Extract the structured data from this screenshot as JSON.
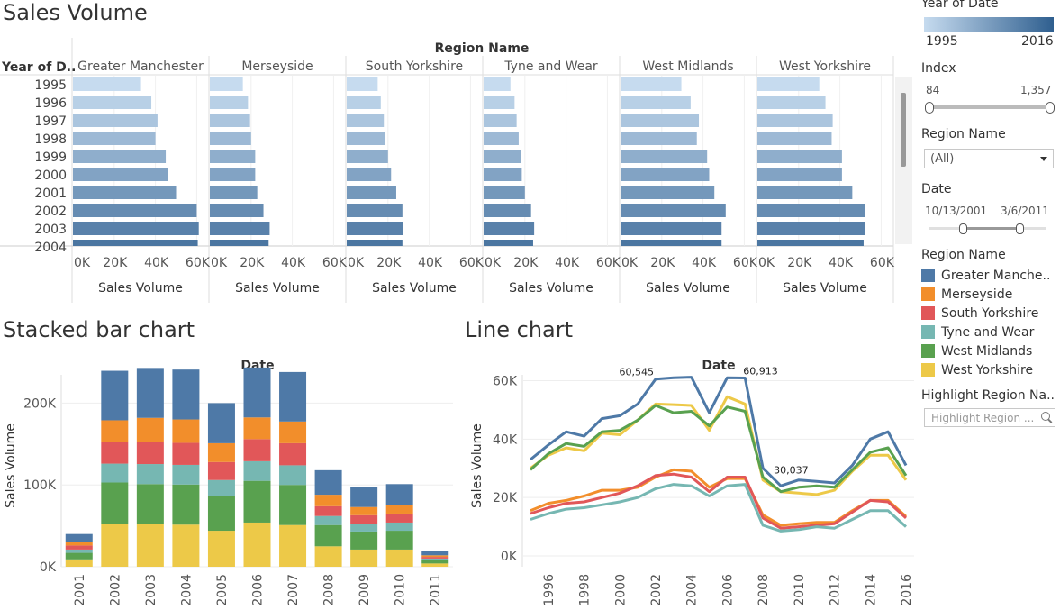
{
  "dashboard": {
    "titles": {
      "top": "Sales Volume",
      "stacked": "Stacked bar chart",
      "line": "Line chart"
    }
  },
  "sidebar": {
    "year_filter": {
      "title": "Year of Date",
      "min_label": "1995",
      "max_label": "2016",
      "color_from": "#c6dbef",
      "color_to": "#2f5f8f"
    },
    "index_filter": {
      "title": "Index",
      "min_label": "84",
      "max_label": "1,357"
    },
    "region_filter": {
      "title": "Region Name",
      "value": "(All)"
    },
    "date_filter": {
      "title": "Date",
      "min_label": "10/13/2001",
      "max_label": "3/6/2011"
    },
    "legend": {
      "title": "Region Name",
      "items": [
        {
          "label": "Greater Manche..",
          "color": "#4e79a7"
        },
        {
          "label": "Merseyside",
          "color": "#f28e2b"
        },
        {
          "label": "South Yorkshire",
          "color": "#e15759"
        },
        {
          "label": "Tyne and Wear",
          "color": "#76b7b2"
        },
        {
          "label": "West Midlands",
          "color": "#59a14f"
        },
        {
          "label": "West Yorkshire",
          "color": "#edc948"
        }
      ]
    },
    "highlight": {
      "title": "Highlight Region Na..",
      "placeholder": "Highlight Region ..."
    }
  },
  "chart_data": [
    {
      "type": "bar",
      "orientation": "horizontal",
      "header": "Region Name",
      "row_header": "Year of D..",
      "xlabel": "Sales Volume",
      "xticks": [
        "0K",
        "20K",
        "40K",
        "60K"
      ],
      "xlim": [
        0,
        62000
      ],
      "categories": [
        "1995",
        "1996",
        "1997",
        "1998",
        "1999",
        "2000",
        "2001",
        "2002",
        "2003",
        "2004"
      ],
      "panels": [
        {
          "name": "Greater Manchester",
          "values": [
            33000,
            38000,
            41000,
            40000,
            45000,
            46000,
            50000,
            60000,
            61000,
            60500
          ]
        },
        {
          "name": "Merseyside",
          "values": [
            16000,
            18500,
            19500,
            20000,
            22000,
            22000,
            23000,
            26000,
            29000,
            28500
          ]
        },
        {
          "name": "South Yorkshire",
          "values": [
            15000,
            16500,
            18000,
            18500,
            20000,
            21500,
            24000,
            27000,
            27500,
            27000
          ]
        },
        {
          "name": "Tyne and Wear",
          "values": [
            13000,
            15000,
            16000,
            17000,
            18000,
            18500,
            20000,
            23000,
            24500,
            24000
          ]
        },
        {
          "name": "West Midlands",
          "values": [
            29500,
            34000,
            38000,
            37000,
            42000,
            43000,
            45500,
            51000,
            49000,
            49000
          ]
        },
        {
          "name": "West Yorkshire",
          "values": [
            30000,
            33000,
            36500,
            36000,
            41000,
            41000,
            46000,
            52000,
            52000,
            51500
          ]
        }
      ]
    },
    {
      "type": "bar",
      "stacked": true,
      "xlabel": "Date",
      "ylabel": "Sales Volume",
      "ylim": [
        0,
        250000
      ],
      "yticks": [
        "0K",
        "100K",
        "200K"
      ],
      "categories": [
        "2001",
        "2002",
        "2003",
        "2004",
        "2005",
        "2006",
        "2007",
        "2008",
        "2009",
        "2010",
        "2011"
      ],
      "series": [
        {
          "name": "West Yorkshire",
          "values": [
            9000,
            52000,
            52000,
            51500,
            44000,
            54000,
            51000,
            25000,
            21000,
            21000,
            4000
          ]
        },
        {
          "name": "West Midlands",
          "values": [
            8000,
            51000,
            49000,
            49000,
            42000,
            51000,
            49000,
            26000,
            22000,
            23000,
            4000
          ]
        },
        {
          "name": "Tyne and Wear",
          "values": [
            4000,
            23000,
            24500,
            24000,
            20000,
            24000,
            24000,
            11000,
            9000,
            10000,
            2000
          ]
        },
        {
          "name": "South Yorkshire",
          "values": [
            5000,
            27000,
            27500,
            27000,
            22000,
            27000,
            27000,
            12000,
            11000,
            11000,
            2000
          ]
        },
        {
          "name": "Merseyside",
          "values": [
            4000,
            26000,
            29000,
            28500,
            23000,
            26500,
            26500,
            14000,
            10000,
            10000,
            2000
          ]
        },
        {
          "name": "Greater Manchester",
          "values": [
            10000,
            60500,
            61000,
            61000,
            49000,
            61000,
            60500,
            30000,
            24000,
            26000,
            5000
          ]
        }
      ]
    },
    {
      "type": "line",
      "xlabel": "Date",
      "ylabel": "Sales Volume",
      "ylim": [
        0,
        62000
      ],
      "yticks": [
        "0K",
        "20K",
        "40K",
        "60K"
      ],
      "xticks": [
        "1996",
        "1998",
        "2000",
        "2002",
        "2004",
        "2006",
        "2008",
        "2010",
        "2012",
        "2014",
        "2016"
      ],
      "x": [
        1995,
        1996,
        1997,
        1998,
        1999,
        2000,
        2001,
        2002,
        2003,
        2004,
        2005,
        2006,
        2007,
        2008,
        2009,
        2010,
        2011,
        2012,
        2013,
        2014,
        2015,
        2016
      ],
      "annotations": [
        {
          "text": "60,545",
          "x": 2002,
          "y": 60545
        },
        {
          "text": "60,913",
          "x": 2007,
          "y": 60913
        },
        {
          "text": "30,037",
          "x": 2008,
          "y": 30037
        }
      ],
      "series": [
        {
          "name": "Greater Manchester",
          "values": [
            33000,
            38000,
            42500,
            41000,
            47000,
            48000,
            52000,
            60545,
            61000,
            61200,
            49000,
            61000,
            60913,
            30037,
            24000,
            26000,
            25500,
            25000,
            31000,
            40000,
            42500,
            31000
          ]
        },
        {
          "name": "West Yorkshire",
          "values": [
            30000,
            34500,
            37000,
            36000,
            42000,
            41500,
            46500,
            52000,
            51800,
            51500,
            43000,
            54500,
            52000,
            26000,
            22000,
            21500,
            21000,
            22500,
            29000,
            34500,
            34500,
            26000
          ]
        },
        {
          "name": "West Midlands",
          "values": [
            29500,
            35000,
            38500,
            37500,
            42500,
            43000,
            46500,
            51500,
            49000,
            49500,
            44500,
            51000,
            49500,
            27000,
            22000,
            23500,
            24000,
            23500,
            29500,
            35500,
            37000,
            27500
          ]
        },
        {
          "name": "Merseyside",
          "values": [
            15500,
            18000,
            19000,
            20500,
            22500,
            22500,
            23500,
            27000,
            29500,
            29000,
            23500,
            26500,
            26500,
            14000,
            10500,
            11000,
            11500,
            11500,
            15500,
            19000,
            19000,
            13500
          ]
        },
        {
          "name": "South Yorkshire",
          "values": [
            14500,
            16500,
            18000,
            18500,
            20000,
            21500,
            24000,
            27500,
            28000,
            27000,
            22000,
            27000,
            27000,
            13000,
            9500,
            10000,
            10500,
            11000,
            15000,
            19000,
            18500,
            13000
          ]
        },
        {
          "name": "Tyne and Wear",
          "values": [
            12500,
            14500,
            16000,
            16500,
            17500,
            18500,
            20000,
            23000,
            24500,
            24000,
            20500,
            24000,
            24500,
            10500,
            8500,
            9000,
            10000,
            9500,
            12500,
            15500,
            15500,
            10000
          ]
        }
      ]
    }
  ]
}
